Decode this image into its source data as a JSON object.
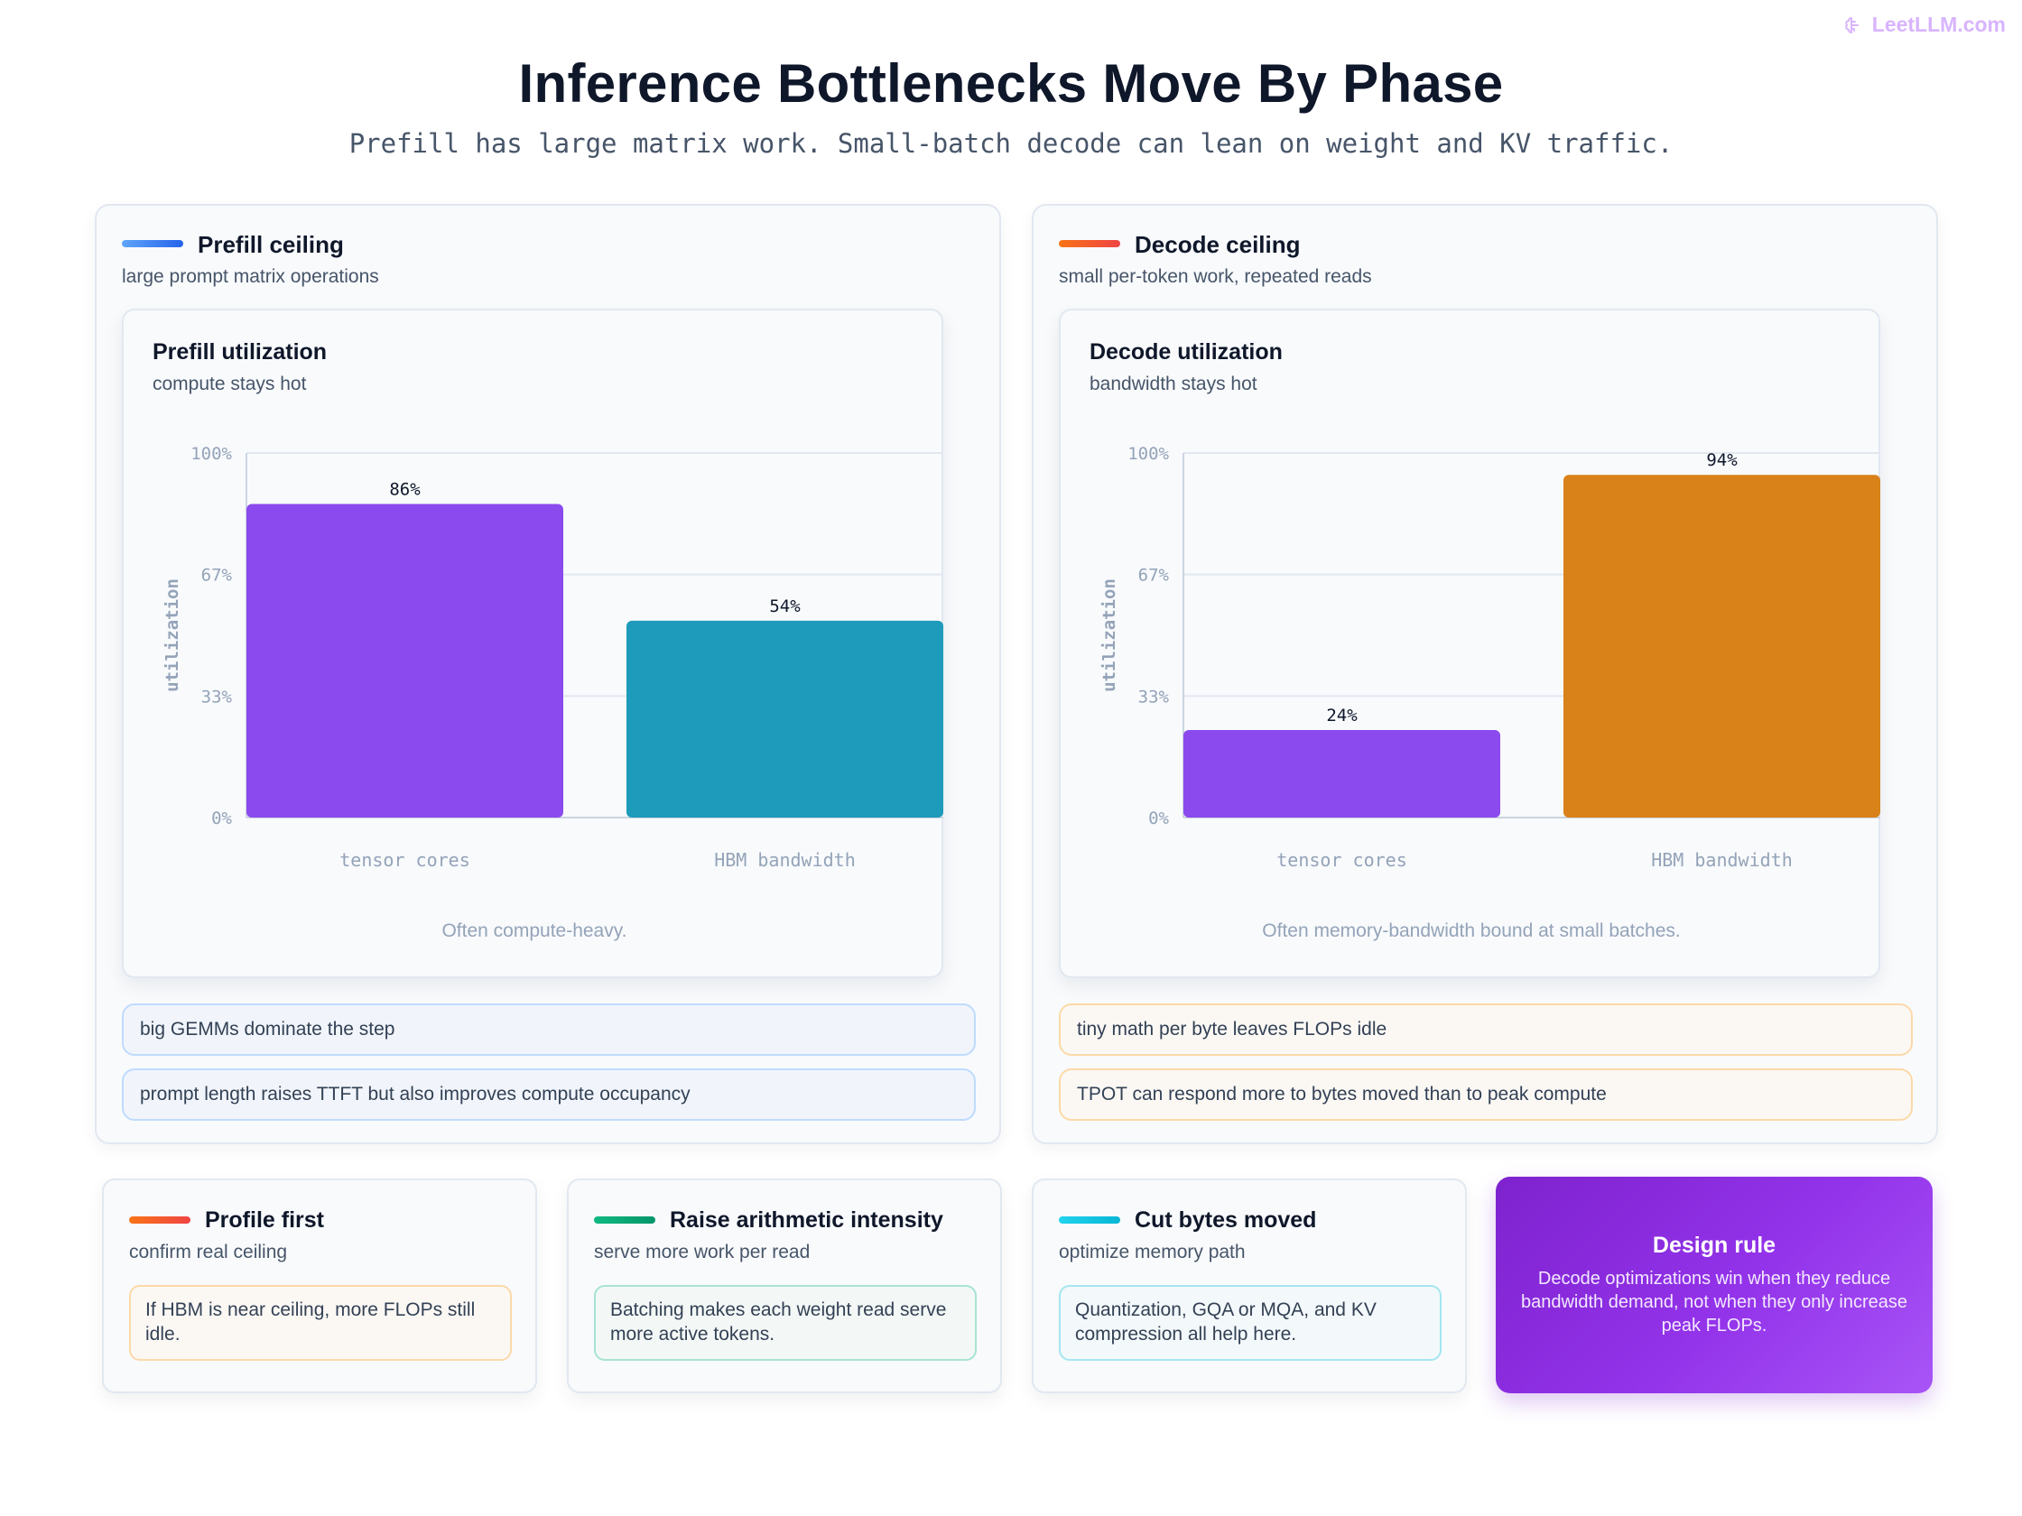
{
  "brand": {
    "label": "LeetLLM.com",
    "icon": "brain-icon"
  },
  "header": {
    "title": "Inference Bottlenecks Move By Phase",
    "subtitle": "Prefill has large matrix work. Small-batch decode can lean on weight and KV traffic."
  },
  "panels": [
    {
      "title": "Prefill ceiling",
      "subtitle": "large prompt matrix operations",
      "accent": [
        "#60a5fa",
        "#2563eb"
      ],
      "chart_title": "Prefill utilization",
      "chart_subtitle": "compute stays hot",
      "chart_note": "Often compute-heavy.",
      "notes": [
        "big GEMMs dominate the step",
        "prompt length raises TTFT but also improves compute occupancy"
      ]
    },
    {
      "title": "Decode ceiling",
      "subtitle": "small per-token work, repeated reads",
      "accent": [
        "#f97316",
        "#ef4444"
      ],
      "chart_title": "Decode utilization",
      "chart_subtitle": "bandwidth stays hot",
      "chart_note": "Often memory-bandwidth bound at small batches.",
      "notes": [
        "tiny math per byte leaves FLOPs idle",
        "TPOT can respond more to bytes moved than to peak compute"
      ]
    }
  ],
  "chart_data": [
    {
      "type": "bar",
      "title": "Prefill utilization",
      "subtitle": "compute stays hot",
      "categories": [
        "tensor cores",
        "HBM bandwidth"
      ],
      "values": [
        86,
        54
      ],
      "value_labels": [
        "86%",
        "54%"
      ],
      "colors": [
        "#8b4aed",
        "#1e9aba"
      ],
      "ylabel": "utilization",
      "ylim": [
        0,
        100
      ],
      "yticks": [
        "0%",
        "33%",
        "67%",
        "100%"
      ],
      "ytick_values": [
        0,
        33.33,
        66.67,
        100
      ],
      "grid": true
    },
    {
      "type": "bar",
      "title": "Decode utilization",
      "subtitle": "bandwidth stays hot",
      "categories": [
        "tensor cores",
        "HBM bandwidth"
      ],
      "values": [
        24,
        94
      ],
      "value_labels": [
        "24%",
        "94%"
      ],
      "colors": [
        "#8b4aed",
        "#d9821a"
      ],
      "ylabel": "utilization",
      "ylim": [
        0,
        100
      ],
      "yticks": [
        "0%",
        "33%",
        "67%",
        "100%"
      ],
      "ytick_values": [
        0,
        33.33,
        66.67,
        100
      ],
      "grid": true
    }
  ],
  "cards": [
    {
      "title": "Profile first",
      "subtitle": "confirm real ceiling",
      "text": "If HBM is near ceiling, more FLOPs still idle.",
      "accent": [
        "#f97316",
        "#ef4444"
      ],
      "box_border": "#fcd9a8",
      "box_bg": "#fbf8f4"
    },
    {
      "title": "Raise arithmetic intensity",
      "subtitle": "serve more work per read",
      "text": "Batching makes each weight read serve more active tokens.",
      "accent": [
        "#10b981",
        "#059669"
      ],
      "box_border": "#a7e3d3",
      "box_bg": "#f3f8f6"
    },
    {
      "title": "Cut bytes moved",
      "subtitle": "optimize memory path",
      "text": "Quantization, GQA or MQA, and KV compression all help here.",
      "accent": [
        "#22d3ee",
        "#06b6d4"
      ],
      "box_border": "#a5e6f1",
      "box_bg": "#f3f8fa"
    }
  ],
  "design_rule": {
    "title": "Design rule",
    "text": "Decode optimizations win when they reduce bandwidth demand, not when they only increase peak FLOPs."
  }
}
